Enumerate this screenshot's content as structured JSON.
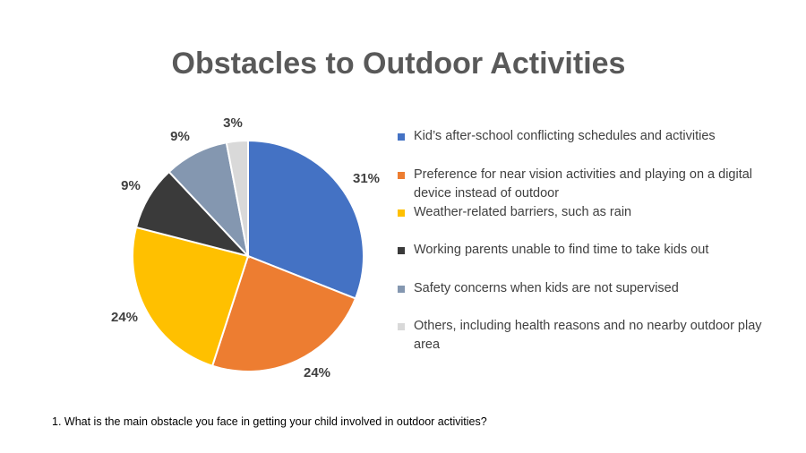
{
  "chart_data": {
    "type": "pie",
    "title": "Obstacles to Outdoor Activities",
    "legend_position": "right",
    "slices": [
      {
        "label": "Kid’s after-school conflicting schedules and activities",
        "value": 31,
        "display": "31%",
        "color": "#4472C4"
      },
      {
        "label": "Preference for near vision activities and playing on a digital device instead of outdoor",
        "value": 24,
        "display": "24%",
        "color": "#ED7D31"
      },
      {
        "label": "Weather-related barriers, such as rain",
        "value": 24,
        "display": "24%",
        "color": "#FFC000"
      },
      {
        "label": "Working parents unable to find time to take kids out",
        "value": 9,
        "display": "9%",
        "color": "#3A3A3A"
      },
      {
        "label": "Safety concerns when kids are not supervised",
        "value": 9,
        "display": "9%",
        "color": "#8497B0"
      },
      {
        "label": "Others, including health reasons and no nearby outdoor play area",
        "value": 3,
        "display": "3%",
        "color": "#D9D9D9"
      }
    ]
  },
  "footnote": "1. What is the main obstacle you face in getting your child involved in outdoor activities?"
}
